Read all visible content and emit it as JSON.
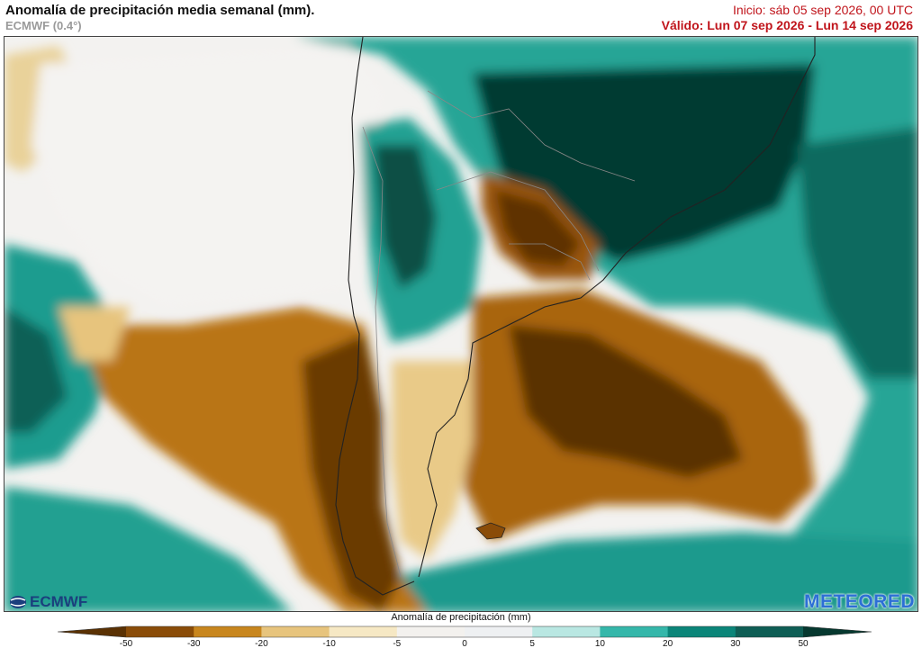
{
  "header": {
    "title": "Anomalía de precipitación media semanal (mm).",
    "model": "ECMWF (0.4°)",
    "init": "Inicio:  sáb 05 sep 2026, 00 UTC",
    "valid": "Válido: Lun 07 sep 2026 - Lun 14 sep 2026"
  },
  "logos": {
    "left": "ECMWF",
    "right": "METEORED"
  },
  "colorbar": {
    "title": "Anomalía de precipitación (mm)",
    "ticks": [
      "-50",
      "-30",
      "-20",
      "-10",
      "-5",
      "0",
      "5",
      "10",
      "20",
      "30",
      "50"
    ],
    "colors": [
      "#5a3103",
      "#8a4c08",
      "#c8861e",
      "#e7c47d",
      "#f6e8c4",
      "#f3f1ee",
      "#eef0f2",
      "#b9e7e2",
      "#35b7aa",
      "#0b8579",
      "#0f5e55",
      "#06382f"
    ]
  },
  "legend_colors": {
    "strong_dry": "#5e3204",
    "dry": "#a9660f",
    "mild_dry": "#e2b564",
    "neutral": "#f2f1ef",
    "mild_wet": "#a7e0d9",
    "wet": "#1f9f92",
    "strong_wet": "#0a4f45"
  }
}
